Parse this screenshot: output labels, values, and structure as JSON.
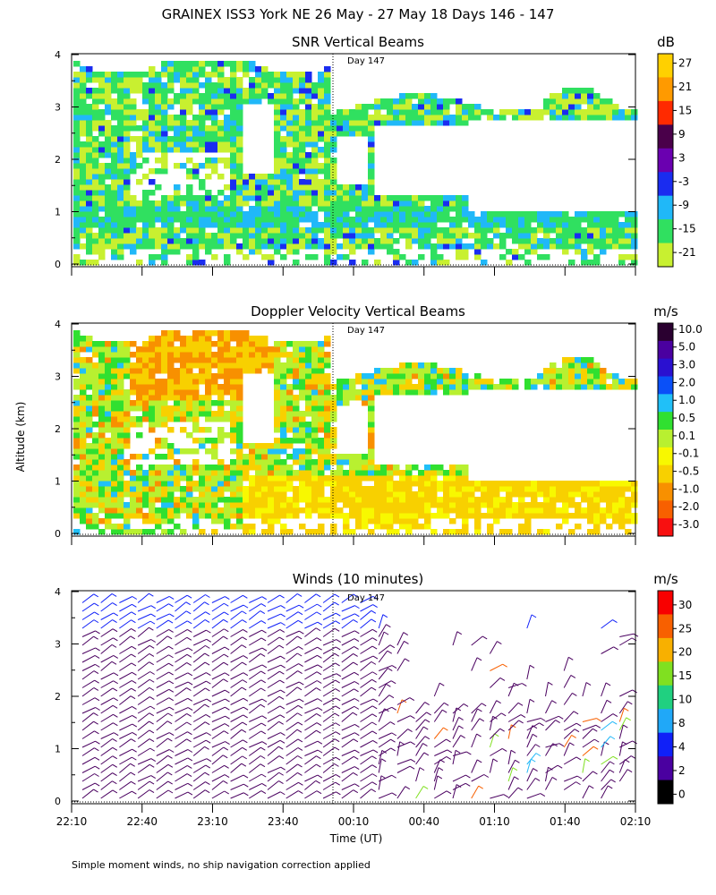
{
  "figure": {
    "title": "GRAINEX ISS3 York NE  26 May - 27 May 18 Days 146 - 147",
    "ylabel": "Altitude (km)",
    "xlabel": "Time (UT)",
    "footnote": "Simple moment winds, no ship navigation correction applied",
    "x_ticks": [
      "22:10",
      "22:40",
      "23:10",
      "23:40",
      "00:10",
      "00:40",
      "01:10",
      "01:40",
      "02:10"
    ],
    "y_ticks": [
      "0",
      "1",
      "2",
      "3",
      "4"
    ],
    "day_marker": "Day 147"
  },
  "chart_data": [
    {
      "type": "heatmap",
      "title": "SNR Vertical Beams",
      "units": "dB",
      "ylim": [
        0,
        4
      ],
      "colorbar_labels": [
        "27",
        "21",
        "15",
        "9",
        "3",
        "-3",
        "-9",
        "-15",
        "-21"
      ],
      "colorbar_colors": [
        "#ffd000",
        "#ff9a00",
        "#ff2a00",
        "#4a004a",
        "#6a00b0",
        "#1a2cf0",
        "#20b8f8",
        "#30e060",
        "#c8f030"
      ]
    },
    {
      "type": "heatmap",
      "title": "Doppler Velocity Vertical Beams",
      "units": "m/s",
      "ylim": [
        0,
        4
      ],
      "colorbar_labels": [
        "10.0",
        "5.0",
        "3.0",
        "2.0",
        "1.0",
        "0.5",
        "0.1",
        "-0.1",
        "-0.5",
        "-1.0",
        "-2.0",
        "-3.0"
      ],
      "colorbar_colors": [
        "#2a0030",
        "#4a00a0",
        "#2a10d0",
        "#0a50f8",
        "#20c0f8",
        "#30e030",
        "#b8f030",
        "#f8f800",
        "#f8d000",
        "#f89000",
        "#f86000",
        "#f81010"
      ]
    },
    {
      "type": "scatter",
      "title": "Winds (10 minutes)",
      "units": "m/s",
      "ylim": [
        0,
        4
      ],
      "colorbar_labels": [
        "30",
        "25",
        "20",
        "15",
        "10",
        "8",
        "4",
        "2",
        "0"
      ],
      "colorbar_colors": [
        "#f80000",
        "#f86000",
        "#f8b000",
        "#80e020",
        "#20d080",
        "#20a8f8",
        "#1020f8",
        "#4a00a0",
        "#000000"
      ]
    }
  ]
}
